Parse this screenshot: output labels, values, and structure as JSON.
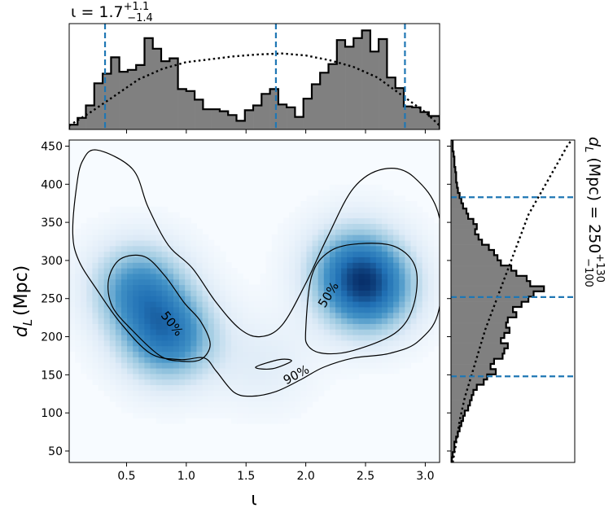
{
  "chart_data": [
    {
      "type": "heatmap",
      "name": "joint-posterior",
      "xlabel": "ι",
      "ylabel_main": "d",
      "ylabel_sub": "L",
      "ylabel_unit": "(Mpc)",
      "xlim": [
        0.02,
        3.12
      ],
      "ylim": [
        35,
        458
      ],
      "xticks": [
        0.5,
        1.0,
        1.5,
        2.0,
        2.5,
        3.0
      ],
      "xtick_labels": [
        "0.5",
        "1.0",
        "1.5",
        "2.0",
        "2.5",
        "3.0"
      ],
      "yticks": [
        50,
        100,
        150,
        200,
        250,
        300,
        350,
        400,
        450
      ],
      "ytick_labels": [
        "50",
        "100",
        "150",
        "200",
        "250",
        "300",
        "350",
        "400",
        "450"
      ],
      "colormap": "Blues",
      "density_peaks": [
        {
          "x": 0.85,
          "y": 200,
          "w": 1.0
        },
        {
          "x": 0.6,
          "y": 265,
          "w": 0.85
        },
        {
          "x": 2.52,
          "y": 262,
          "w": 1.05
        },
        {
          "x": 2.4,
          "y": 295,
          "w": 0.6
        },
        {
          "x": 1.65,
          "y": 165,
          "w": 0.2
        }
      ],
      "contours": [
        {
          "label": "90%",
          "label_pos": [
            1.92,
            150
          ],
          "loops": [
            [
              [
                0.25,
                445
              ],
              [
                0.55,
                420
              ],
              [
                0.68,
                370
              ],
              [
                0.85,
                320
              ],
              [
                1.05,
                290
              ],
              [
                1.25,
                245
              ],
              [
                1.45,
                210
              ],
              [
                1.62,
                200
              ],
              [
                1.8,
                215
              ],
              [
                2.0,
                270
              ],
              [
                2.18,
                330
              ],
              [
                2.4,
                395
              ],
              [
                2.65,
                420
              ],
              [
                2.9,
                410
              ],
              [
                3.12,
                355
              ],
              [
                3.12,
                240
              ],
              [
                2.95,
                195
              ],
              [
                2.7,
                178
              ],
              [
                2.4,
                172
              ],
              [
                2.15,
                160
              ],
              [
                1.95,
                143
              ],
              [
                1.75,
                128
              ],
              [
                1.55,
                122
              ],
              [
                1.4,
                127
              ],
              [
                1.25,
                155
              ],
              [
                1.15,
                172
              ],
              [
                0.95,
                170
              ],
              [
                0.7,
                178
              ],
              [
                0.45,
                218
              ],
              [
                0.25,
                262
              ],
              [
                0.1,
                300
              ],
              [
                0.05,
                335
              ],
              [
                0.08,
                395
              ],
              [
                0.13,
                430
              ]
            ],
            [
              [
                1.58,
                160
              ],
              [
                1.78,
                170
              ],
              [
                1.88,
                168
              ],
              [
                1.72,
                158
              ]
            ]
          ]
        },
        {
          "label": "50%",
          "label_pos": [
            0.88,
            217
          ],
          "loops": [
            [
              [
                0.35,
                275
              ],
              [
                0.45,
                302
              ],
              [
                0.65,
                305
              ],
              [
                0.82,
                280
              ],
              [
                0.98,
                245
              ],
              [
                1.12,
                220
              ],
              [
                1.2,
                190
              ],
              [
                1.12,
                170
              ],
              [
                0.95,
                168
              ],
              [
                0.78,
                175
              ],
              [
                0.55,
                208
              ],
              [
                0.38,
                240
              ]
            ]
          ]
        },
        {
          "label": "50%",
          "label_pos": [
            2.19,
            255
          ],
          "loops": [
            [
              [
                2.0,
                210
              ],
              [
                2.05,
                280
              ],
              [
                2.2,
                312
              ],
              [
                2.45,
                322
              ],
              [
                2.75,
                318
              ],
              [
                2.92,
                290
              ],
              [
                2.9,
                240
              ],
              [
                2.75,
                205
              ],
              [
                2.4,
                182
              ],
              [
                2.15,
                178
              ],
              [
                2.02,
                188
              ]
            ]
          ]
        }
      ]
    },
    {
      "type": "bar",
      "name": "iota-marginal",
      "title_prefix": "ι = 1.7",
      "title_sup": "+1.1",
      "title_sub": "−1.4",
      "xlim": [
        0.02,
        3.12
      ],
      "quantiles": [
        0.32,
        1.75,
        2.83
      ],
      "bin_edges": [
        0.02,
        0.09,
        0.16,
        0.23,
        0.3,
        0.37,
        0.44,
        0.51,
        0.58,
        0.65,
        0.72,
        0.79,
        0.86,
        0.93,
        1.0,
        1.07,
        1.14,
        1.21,
        1.28,
        1.35,
        1.42,
        1.49,
        1.56,
        1.63,
        1.7,
        1.77,
        1.84,
        1.91,
        1.98,
        2.05,
        2.12,
        2.19,
        2.26,
        2.33,
        2.4,
        2.47,
        2.54,
        2.61,
        2.68,
        2.75,
        2.82,
        2.89,
        2.96,
        3.03,
        3.12
      ],
      "counts": [
        5,
        12,
        25,
        48,
        58,
        75,
        60,
        62,
        67,
        95,
        84,
        71,
        74,
        42,
        40,
        31,
        21,
        21,
        19,
        15,
        9,
        20,
        25,
        37,
        42,
        26,
        23,
        13,
        32,
        47,
        59,
        68,
        93,
        86,
        95,
        103,
        81,
        94,
        54,
        43,
        24,
        23,
        18,
        14
      ],
      "prior_x": [
        0.02,
        0.2,
        0.4,
        0.6,
        0.8,
        1.0,
        1.2,
        1.4,
        1.6,
        1.8,
        2.0,
        2.2,
        2.4,
        2.6,
        2.8,
        3.0,
        3.12
      ],
      "prior_y": [
        4,
        18,
        35,
        52,
        63,
        70,
        73,
        76,
        78,
        79,
        77,
        72,
        65,
        54,
        36,
        18,
        4
      ],
      "ymax": 105
    },
    {
      "type": "bar",
      "name": "distance-marginal",
      "title_main": "d",
      "title_sub_L": "L",
      "title_rest": " (Mpc) = 250",
      "title_sup": "+130",
      "title_sub": "−100",
      "ylim": [
        35,
        458
      ],
      "quantiles": [
        148,
        252,
        383
      ],
      "bin_edges": [
        35,
        41.8,
        48.6,
        55.4,
        62.2,
        69,
        75.8,
        82.6,
        89.4,
        96.2,
        103,
        109.8,
        116.6,
        123.4,
        130.2,
        137,
        143.8,
        150.6,
        157.4,
        164.2,
        171,
        177.8,
        184.6,
        191.4,
        198.2,
        205,
        211.8,
        218.6,
        225.4,
        232.2,
        239,
        245.8,
        252.6,
        259.4,
        266.2,
        273,
        279.8,
        286.6,
        293.4,
        300.2,
        307,
        313.8,
        320.6,
        327.4,
        334.2,
        341,
        347.8,
        354.6,
        361.4,
        368.2,
        375,
        381.8,
        388.6,
        395.4,
        402.2,
        409,
        415.8,
        422.6,
        429.4,
        436.2,
        443,
        449.8,
        458
      ],
      "counts": [
        1,
        2,
        4,
        4,
        6,
        8,
        10,
        12,
        14,
        16,
        20,
        22,
        24,
        26,
        30,
        38,
        42,
        52,
        46,
        50,
        60,
        62,
        66,
        58,
        62,
        68,
        64,
        66,
        76,
        72,
        82,
        90,
        96,
        108,
        92,
        88,
        76,
        70,
        58,
        54,
        50,
        44,
        36,
        32,
        28,
        30,
        26,
        20,
        18,
        14,
        12,
        10,
        8,
        7,
        6,
        6,
        5,
        4,
        4,
        3,
        2,
        2
      ],
      "prior_x": [
        35,
        60,
        90,
        120,
        150,
        180,
        210,
        240,
        270,
        300,
        330,
        360,
        390,
        420,
        450,
        458
      ],
      "prior_y": [
        2,
        6,
        10,
        16,
        24,
        32,
        40,
        50,
        60,
        70,
        80,
        90,
        105,
        120,
        135,
        140
      ],
      "xmax": 140
    }
  ]
}
